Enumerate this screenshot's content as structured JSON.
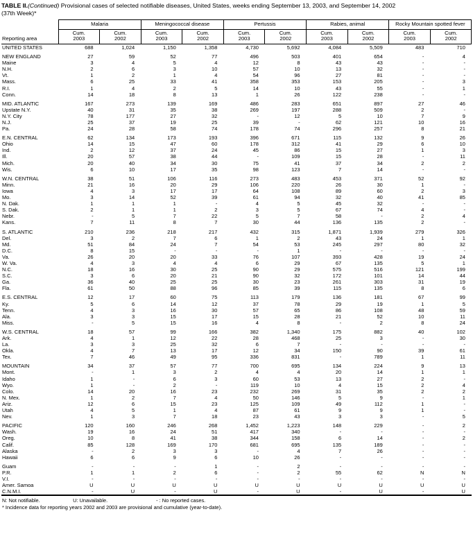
{
  "title": {
    "table_label": "TABLE II.",
    "continued": "(Continued)",
    "rest": " Provisional cases of selected notifiable diseases, United States, weeks ending September 13, 2003, and September 14, 2002",
    "week": "(37th Week)*"
  },
  "header": {
    "reporting_area": "Reporting area",
    "groups": [
      "Malaria",
      "Meningococcal disease",
      "Pertussis",
      "Rabies, animal",
      "Rocky Mountain spotted fever"
    ],
    "subcolumns": [
      {
        "line1": "Cum.",
        "line2": "2003"
      },
      {
        "line1": "Cum.",
        "line2": "2002"
      }
    ]
  },
  "rows": [
    {
      "area": "UNITED STATES",
      "gap": false,
      "values": [
        "688",
        "1,024",
        "1,150",
        "1,358",
        "4,730",
        "5,692",
        "4,084",
        "5,509",
        "483",
        "710"
      ]
    },
    {
      "area": "NEW ENGLAND",
      "gap": true,
      "values": [
        "27",
        "59",
        "52",
        "77",
        "496",
        "503",
        "401",
        "654",
        "-",
        "4"
      ]
    },
    {
      "area": "Maine",
      "gap": false,
      "values": [
        "3",
        "4",
        "5",
        "4",
        "12",
        "8",
        "43",
        "43",
        "-",
        "-"
      ]
    },
    {
      "area": "N.H.",
      "gap": false,
      "values": [
        "2",
        "6",
        "3",
        "10",
        "57",
        "10",
        "13",
        "32",
        "-",
        "-"
      ]
    },
    {
      "area": "Vt.",
      "gap": false,
      "values": [
        "1",
        "2",
        "1",
        "4",
        "54",
        "96",
        "27",
        "81",
        "-",
        "-"
      ]
    },
    {
      "area": "Mass.",
      "gap": false,
      "values": [
        "6",
        "25",
        "33",
        "41",
        "358",
        "353",
        "153",
        "205",
        "-",
        "3"
      ]
    },
    {
      "area": "R.I.",
      "gap": false,
      "values": [
        "1",
        "4",
        "2",
        "5",
        "14",
        "10",
        "43",
        "55",
        "-",
        "1"
      ]
    },
    {
      "area": "Conn.",
      "gap": false,
      "values": [
        "14",
        "18",
        "8",
        "13",
        "1",
        "26",
        "122",
        "238",
        "-",
        "-"
      ]
    },
    {
      "area": "MID. ATLANTIC",
      "gap": true,
      "values": [
        "167",
        "273",
        "139",
        "169",
        "486",
        "283",
        "651",
        "897",
        "27",
        "46"
      ]
    },
    {
      "area": "Upstate N.Y.",
      "gap": false,
      "values": [
        "40",
        "31",
        "35",
        "38",
        "269",
        "197",
        "288",
        "509",
        "2",
        "-"
      ]
    },
    {
      "area": "N.Y. City",
      "gap": false,
      "values": [
        "78",
        "177",
        "27",
        "32",
        "-",
        "12",
        "5",
        "10",
        "7",
        "9"
      ]
    },
    {
      "area": "N.J.",
      "gap": false,
      "values": [
        "25",
        "37",
        "19",
        "25",
        "39",
        "-",
        "62",
        "121",
        "10",
        "16"
      ]
    },
    {
      "area": "Pa.",
      "gap": false,
      "values": [
        "24",
        "28",
        "58",
        "74",
        "178",
        "74",
        "296",
        "257",
        "8",
        "21"
      ]
    },
    {
      "area": "E.N. CENTRAL",
      "gap": true,
      "values": [
        "62",
        "134",
        "173",
        "193",
        "396",
        "671",
        "115",
        "132",
        "9",
        "26"
      ]
    },
    {
      "area": "Ohio",
      "gap": false,
      "values": [
        "14",
        "15",
        "47",
        "60",
        "178",
        "312",
        "41",
        "29",
        "6",
        "10"
      ]
    },
    {
      "area": "Ind.",
      "gap": false,
      "values": [
        "2",
        "12",
        "37",
        "24",
        "45",
        "86",
        "15",
        "27",
        "1",
        "3"
      ]
    },
    {
      "area": "Ill.",
      "gap": false,
      "values": [
        "20",
        "57",
        "38",
        "44",
        "-",
        "109",
        "15",
        "28",
        "-",
        "11"
      ]
    },
    {
      "area": "Mich.",
      "gap": false,
      "values": [
        "20",
        "40",
        "34",
        "30",
        "75",
        "41",
        "37",
        "34",
        "2",
        "2"
      ]
    },
    {
      "area": "Wis.",
      "gap": false,
      "values": [
        "6",
        "10",
        "17",
        "35",
        "98",
        "123",
        "7",
        "14",
        "-",
        "-"
      ]
    },
    {
      "area": "W.N. CENTRAL",
      "gap": true,
      "values": [
        "38",
        "51",
        "106",
        "116",
        "273",
        "483",
        "453",
        "371",
        "52",
        "92"
      ]
    },
    {
      "area": "Minn.",
      "gap": false,
      "values": [
        "21",
        "16",
        "20",
        "29",
        "106",
        "220",
        "26",
        "30",
        "1",
        "-"
      ]
    },
    {
      "area": "Iowa",
      "gap": false,
      "values": [
        "4",
        "3",
        "17",
        "17",
        "64",
        "108",
        "89",
        "60",
        "2",
        "3"
      ]
    },
    {
      "area": "Mo.",
      "gap": false,
      "values": [
        "3",
        "14",
        "52",
        "39",
        "61",
        "94",
        "32",
        "40",
        "41",
        "85"
      ]
    },
    {
      "area": "N. Dak.",
      "gap": false,
      "values": [
        "1",
        "1",
        "1",
        "-",
        "4",
        "5",
        "45",
        "32",
        "-",
        "-"
      ]
    },
    {
      "area": "S. Dak.",
      "gap": false,
      "values": [
        "2",
        "1",
        "1",
        "2",
        "3",
        "5",
        "67",
        "74",
        "4",
        "-"
      ]
    },
    {
      "area": "Nebr.",
      "gap": false,
      "values": [
        "-",
        "5",
        "7",
        "22",
        "5",
        "7",
        "58",
        "-",
        "2",
        "4"
      ]
    },
    {
      "area": "Kans.",
      "gap": false,
      "values": [
        "7",
        "11",
        "8",
        "7",
        "30",
        "44",
        "136",
        "135",
        "2",
        "-"
      ]
    },
    {
      "area": "S. ATLANTIC",
      "gap": true,
      "values": [
        "210",
        "236",
        "218",
        "217",
        "432",
        "315",
        "1,871",
        "1,939",
        "279",
        "326"
      ]
    },
    {
      "area": "Del.",
      "gap": false,
      "values": [
        "3",
        "2",
        "7",
        "6",
        "1",
        "2",
        "43",
        "24",
        "1",
        "1"
      ]
    },
    {
      "area": "Md.",
      "gap": false,
      "values": [
        "51",
        "84",
        "24",
        "7",
        "54",
        "53",
        "245",
        "297",
        "80",
        "32"
      ]
    },
    {
      "area": "D.C.",
      "gap": false,
      "values": [
        "8",
        "15",
        "-",
        "-",
        "-",
        "1",
        "-",
        "-",
        "-",
        "-"
      ]
    },
    {
      "area": "Va.",
      "gap": false,
      "values": [
        "26",
        "20",
        "20",
        "33",
        "76",
        "107",
        "393",
        "428",
        "19",
        "24"
      ]
    },
    {
      "area": "W. Va.",
      "gap": false,
      "values": [
        "4",
        "3",
        "4",
        "4",
        "6",
        "29",
        "67",
        "135",
        "5",
        "1"
      ]
    },
    {
      "area": "N.C.",
      "gap": false,
      "values": [
        "18",
        "16",
        "30",
        "25",
        "90",
        "29",
        "575",
        "516",
        "121",
        "199"
      ]
    },
    {
      "area": "S.C.",
      "gap": false,
      "values": [
        "3",
        "6",
        "20",
        "21",
        "90",
        "32",
        "172",
        "101",
        "14",
        "44"
      ]
    },
    {
      "area": "Ga.",
      "gap": false,
      "values": [
        "36",
        "40",
        "25",
        "25",
        "30",
        "23",
        "261",
        "303",
        "31",
        "19"
      ]
    },
    {
      "area": "Fla.",
      "gap": false,
      "values": [
        "61",
        "50",
        "88",
        "96",
        "85",
        "39",
        "115",
        "135",
        "8",
        "6"
      ]
    },
    {
      "area": "E.S. CENTRAL",
      "gap": true,
      "values": [
        "12",
        "17",
        "60",
        "75",
        "113",
        "179",
        "136",
        "181",
        "67",
        "99"
      ]
    },
    {
      "area": "Ky.",
      "gap": false,
      "values": [
        "5",
        "6",
        "14",
        "12",
        "37",
        "78",
        "29",
        "19",
        "1",
        "5"
      ]
    },
    {
      "area": "Tenn.",
      "gap": false,
      "values": [
        "4",
        "3",
        "16",
        "30",
        "57",
        "65",
        "86",
        "108",
        "48",
        "59"
      ]
    },
    {
      "area": "Ala.",
      "gap": false,
      "values": [
        "3",
        "3",
        "15",
        "17",
        "15",
        "28",
        "21",
        "52",
        "10",
        "11"
      ]
    },
    {
      "area": "Miss.",
      "gap": false,
      "values": [
        "-",
        "5",
        "15",
        "16",
        "4",
        "8",
        "-",
        "2",
        "8",
        "24"
      ]
    },
    {
      "area": "W.S. CENTRAL",
      "gap": true,
      "values": [
        "18",
        "57",
        "99",
        "166",
        "382",
        "1,340",
        "175",
        "882",
        "40",
        "102"
      ]
    },
    {
      "area": "Ark.",
      "gap": false,
      "values": [
        "4",
        "1",
        "12",
        "22",
        "28",
        "468",
        "25",
        "3",
        "-",
        "30"
      ]
    },
    {
      "area": "La.",
      "gap": false,
      "values": [
        "3",
        "3",
        "25",
        "32",
        "6",
        "7",
        "-",
        "-",
        "-",
        "-"
      ]
    },
    {
      "area": "Okla.",
      "gap": false,
      "values": [
        "4",
        "7",
        "13",
        "17",
        "12",
        "34",
        "150",
        "90",
        "39",
        "61"
      ]
    },
    {
      "area": "Tex.",
      "gap": false,
      "values": [
        "7",
        "46",
        "49",
        "95",
        "336",
        "831",
        "-",
        "789",
        "1",
        "11"
      ]
    },
    {
      "area": "MOUNTAIN",
      "gap": true,
      "values": [
        "34",
        "37",
        "57",
        "77",
        "700",
        "695",
        "134",
        "224",
        "9",
        "13"
      ]
    },
    {
      "area": "Mont.",
      "gap": false,
      "values": [
        "-",
        "1",
        "3",
        "2",
        "4",
        "4",
        "20",
        "14",
        "1",
        "1"
      ]
    },
    {
      "area": "Idaho",
      "gap": false,
      "values": [
        "1",
        "-",
        "6",
        "3",
        "60",
        "53",
        "13",
        "27",
        "2",
        "-"
      ]
    },
    {
      "area": "Wyo.",
      "gap": false,
      "values": [
        "1",
        "-",
        "2",
        "-",
        "119",
        "10",
        "4",
        "15",
        "2",
        "4"
      ]
    },
    {
      "area": "Colo.",
      "gap": false,
      "values": [
        "14",
        "20",
        "16",
        "23",
        "232",
        "269",
        "31",
        "35",
        "2",
        "2"
      ]
    },
    {
      "area": "N. Mex.",
      "gap": false,
      "values": [
        "1",
        "2",
        "7",
        "4",
        "50",
        "146",
        "5",
        "9",
        "-",
        "1"
      ]
    },
    {
      "area": "Ariz.",
      "gap": false,
      "values": [
        "12",
        "6",
        "15",
        "23",
        "125",
        "109",
        "49",
        "112",
        "1",
        "-"
      ]
    },
    {
      "area": "Utah",
      "gap": false,
      "values": [
        "4",
        "5",
        "1",
        "4",
        "87",
        "61",
        "9",
        "9",
        "1",
        "-"
      ]
    },
    {
      "area": "Nev.",
      "gap": false,
      "values": [
        "1",
        "3",
        "7",
        "18",
        "23",
        "43",
        "3",
        "3",
        "-",
        "5"
      ]
    },
    {
      "area": "PACIFIC",
      "gap": true,
      "values": [
        "120",
        "160",
        "246",
        "268",
        "1,452",
        "1,223",
        "148",
        "229",
        "-",
        "2"
      ]
    },
    {
      "area": "Wash.",
      "gap": false,
      "values": [
        "19",
        "16",
        "24",
        "51",
        "417",
        "340",
        "-",
        "-",
        "-",
        "-"
      ]
    },
    {
      "area": "Oreg.",
      "gap": false,
      "values": [
        "10",
        "8",
        "41",
        "38",
        "344",
        "158",
        "6",
        "14",
        "-",
        "2"
      ]
    },
    {
      "area": "Calif.",
      "gap": false,
      "values": [
        "85",
        "128",
        "169",
        "170",
        "681",
        "695",
        "135",
        "189",
        "-",
        "-"
      ]
    },
    {
      "area": "Alaska",
      "gap": false,
      "values": [
        "-",
        "2",
        "3",
        "3",
        "-",
        "4",
        "7",
        "26",
        "-",
        "-"
      ]
    },
    {
      "area": "Hawaii",
      "gap": false,
      "values": [
        "6",
        "6",
        "9",
        "6",
        "10",
        "26",
        "-",
        "-",
        "-",
        "-"
      ]
    },
    {
      "area": "Guam",
      "gap": true,
      "values": [
        "-",
        "-",
        "-",
        "1",
        "-",
        "2",
        "-",
        "-",
        "-",
        "-"
      ]
    },
    {
      "area": "P.R.",
      "gap": false,
      "values": [
        "1",
        "1",
        "2",
        "6",
        "-",
        "2",
        "55",
        "62",
        "N",
        "N"
      ]
    },
    {
      "area": "V.I.",
      "gap": false,
      "values": [
        "-",
        "-",
        "-",
        "-",
        "-",
        "-",
        "-",
        "-",
        "-",
        "-"
      ]
    },
    {
      "area": "Amer. Samoa",
      "gap": false,
      "values": [
        "U",
        "U",
        "U",
        "U",
        "U",
        "U",
        "U",
        "U",
        "U",
        "U"
      ]
    },
    {
      "area": "C.N.M.I.",
      "gap": false,
      "values": [
        "-",
        "U",
        "-",
        "U",
        "-",
        "U",
        "-",
        "U",
        "-",
        "U"
      ]
    }
  ],
  "footnotes": {
    "n": "N: Not notifiable.",
    "u": "U: Unavailable.",
    "dash": "- : No reported cases.",
    "asterisk": "* Incidence data for reporting years 2002 and 2003 are provisional and cumulative (year-to-date)."
  }
}
